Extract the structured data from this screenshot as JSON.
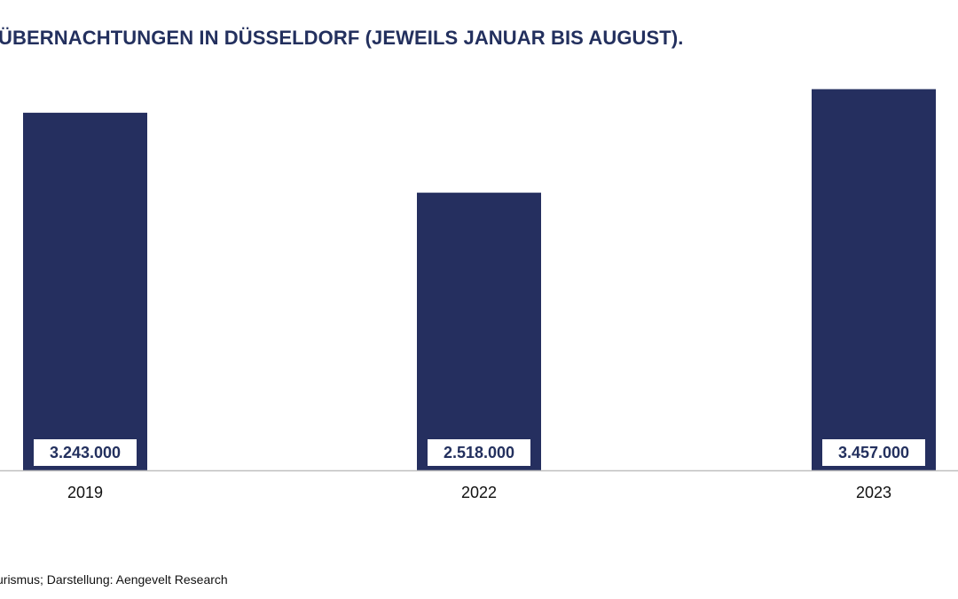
{
  "colors": {
    "bar": "#252f5f",
    "axis": "#bfbfbf",
    "label_bg": "#ffffff",
    "label_text": "#23305e",
    "title": "#23305e"
  },
  "chart_data": {
    "type": "bar",
    "title": "ÜBERNACHTUNGEN IN DÜSSELDORF (JEWEILS JANUAR BIS AUGUST).",
    "categories": [
      "2019",
      "2022",
      "2023"
    ],
    "values": [
      3243000,
      2518000,
      3457000
    ],
    "data_labels": [
      "3.243.000",
      "2.518.000",
      "3.457.000"
    ],
    "xlabel": "",
    "ylabel": "",
    "ylim": [
      0,
      4000000
    ],
    "grid": false
  },
  "footer": {
    "source": "urismus; Darstellung: Aengevelt Research"
  }
}
